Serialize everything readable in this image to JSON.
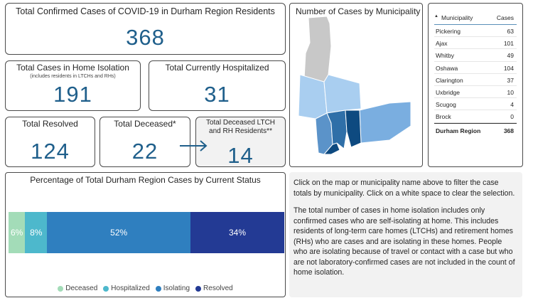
{
  "cards": {
    "total_confirmed": {
      "title": "Total Confirmed Cases of COVID-19 in Durham Region Residents",
      "value": "368"
    },
    "home_isolation": {
      "title": "Total Cases in Home Isolation",
      "subtitle": "(includes residents in LTCHs and RHs)",
      "value": "191"
    },
    "hospitalized": {
      "title": "Total Currently Hospitalized",
      "value": "31"
    },
    "resolved": {
      "title": "Total Resolved",
      "value": "124"
    },
    "deceased": {
      "title": "Total Deceased*",
      "value": "22"
    },
    "deceased_ltch": {
      "title_line1": "Total Deceased LTCH",
      "title_line2": "and RH Residents**",
      "value": "14"
    }
  },
  "map": {
    "title": "Number of Cases by Municipality",
    "colors": {
      "brock": "#c8c8c8",
      "light": "#a9cef0",
      "mid": "#7aaee0",
      "mid2": "#5b93c9",
      "dark": "#2f6fa8",
      "darkest": "#0e4a80"
    }
  },
  "table": {
    "col_municipality": "Municipality",
    "col_cases": "Cases",
    "rows": [
      {
        "name": "Pickering",
        "cases": "63"
      },
      {
        "name": "Ajax",
        "cases": "101"
      },
      {
        "name": "Whitby",
        "cases": "49"
      },
      {
        "name": "Oshawa",
        "cases": "104"
      },
      {
        "name": "Clarington",
        "cases": "37"
      },
      {
        "name": "Uxbridge",
        "cases": "10"
      },
      {
        "name": "Scugog",
        "cases": "4"
      },
      {
        "name": "Brock",
        "cases": "0"
      }
    ],
    "total_label": "Durham Region",
    "total_value": "368"
  },
  "chart_data": {
    "type": "bar",
    "title": "Percentage of Total Durham Region Cases by Current Status",
    "stacked": true,
    "orientation": "horizontal",
    "series": [
      {
        "name": "Deceased",
        "value": 6,
        "label": "6%",
        "color": "#a3dcb8"
      },
      {
        "name": "Hospitalized",
        "value": 8,
        "label": "8%",
        "color": "#4db8cc"
      },
      {
        "name": "Isolating",
        "value": 52,
        "label": "52%",
        "color": "#2f7fbf"
      },
      {
        "name": "Resolved",
        "value": 34,
        "label": "34%",
        "color": "#233a94"
      }
    ],
    "legend": [
      "Deceased",
      "Hospitalized",
      "Isolating",
      "Resolved"
    ]
  },
  "info": {
    "paragraph1": "Click on the map or municipality name above to filter the case totals by municipality. Click on a white space to clear the selection.",
    "paragraph2": "The total number of cases in home isolation includes only confirmed cases who are self-isolating at home. This includes residents of long-term care homes (LTCHs) and retirement homes (RHs) who are cases and are isolating in these homes. People who are isolating because of travel or contact with a case but who are not laboratory-confirmed cases are not included in the count of home isolation."
  }
}
